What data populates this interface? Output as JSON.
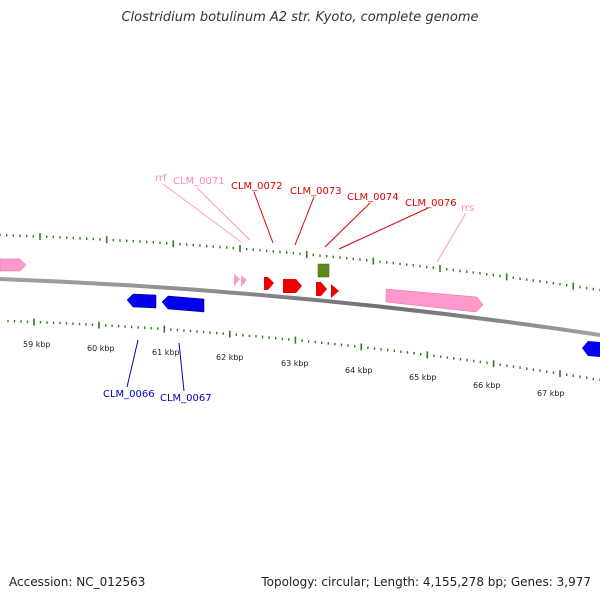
{
  "title": "Clostridium botulinum A2 str. Kyoto, complete genome",
  "footer": {
    "accession_text": "Accession: NC_012563",
    "topology_text": "Topology: circular; Length: 4,155,278 bp; Genes: 3,977"
  },
  "colors": {
    "forward_label": "#dd0000",
    "reverse_label": "#0000bb",
    "rrna_label": "#ff88bb",
    "tick": "#2a7f1a",
    "backbone": "#808080"
  },
  "scale": {
    "tick_labels": [
      "59 kbp",
      "60 kbp",
      "61 kbp",
      "62 kbp",
      "63 kbp",
      "64 kbp",
      "65 kbp",
      "66 kbp",
      "67 kbp"
    ]
  },
  "gene_labels": {
    "rrf": "rrf",
    "CLM_0071": "CLM_0071",
    "CLM_0072": "CLM_0072",
    "CLM_0073": "CLM_0073",
    "CLM_0074": "CLM_0074",
    "CLM_0076": "CLM_0076",
    "rrs": "rrs",
    "CLM_0066": "CLM_0066",
    "CLM_0067": "CLM_0067"
  },
  "features": {
    "forward_cds_color": "#ee0000",
    "reverse_cds_color": "#0000ee",
    "rrna_color": "#ff99cc",
    "misc_feature_color": "#5a8a1a"
  }
}
